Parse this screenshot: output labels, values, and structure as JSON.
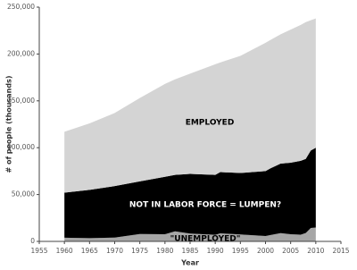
{
  "chart_data": {
    "type": "stacked_area",
    "xlabel": "Year",
    "ylabel": "# of people (thousands)",
    "x": [
      1960,
      1965,
      1970,
      1975,
      1980,
      1982,
      1985,
      1990,
      1991,
      1995,
      2000,
      2001,
      2003,
      2005,
      2007,
      2008,
      2009,
      2010
    ],
    "series": [
      {
        "name": "\"UNEMPLOYED\"",
        "color": "#a6a6a6",
        "values": [
          3.9,
          3.4,
          4.1,
          7.9,
          7.6,
          10.7,
          8.3,
          7.0,
          8.6,
          7.4,
          5.7,
          6.8,
          8.8,
          7.6,
          7.1,
          8.9,
          14.3,
          14.8
        ]
      },
      {
        "name": "NOT IN LABOR FORCE = LUMPEN?",
        "color": "#000000",
        "values": [
          48.1,
          51.6,
          54.9,
          56.1,
          61.4,
          60.3,
          63.7,
          64.0,
          65.4,
          65.6,
          69.3,
          71.2,
          74.2,
          76.4,
          78.9,
          79.1,
          82.7,
          85.2
        ]
      },
      {
        "name": "EMPLOYED",
        "color": "#d4d4d4",
        "values": [
          65,
          71,
          78,
          89,
          99,
          102,
          107,
          118,
          117,
          125,
          137,
          137,
          138,
          142,
          145,
          146,
          139,
          138
        ]
      }
    ],
    "xlim": [
      1955,
      2015
    ],
    "xticks": [
      1955,
      1960,
      1965,
      1970,
      1975,
      1980,
      1985,
      1990,
      1995,
      2000,
      2005,
      2010,
      2015
    ],
    "ylim": [
      0,
      250000
    ],
    "yticks": [
      0,
      {
        "value": 50000,
        "label": "50,000"
      },
      {
        "value": 100000,
        "label": "100,000"
      },
      {
        "value": 150000,
        "label": "150,000"
      },
      {
        "value": 200000,
        "label": "200,000"
      },
      {
        "value": 250000,
        "label": "250,000"
      }
    ],
    "value_unit_multiplier_note_free": null
  }
}
